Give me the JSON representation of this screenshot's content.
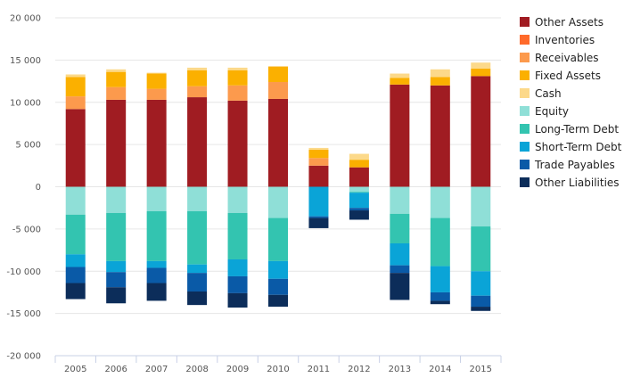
{
  "chart_data": {
    "type": "bar",
    "stacked": true,
    "categories": [
      "2005",
      "2006",
      "2007",
      "2008",
      "2009",
      "2010",
      "2011",
      "2012",
      "2013",
      "2014",
      "2015"
    ],
    "ylim": [
      -20000,
      20000
    ],
    "yticks": [
      20000,
      15000,
      10000,
      5000,
      0,
      -5000,
      -10000,
      -15000,
      -20000
    ],
    "ytick_labels": [
      "20 000",
      "15 000",
      "10 000",
      "5 000",
      "0",
      "-5 000",
      "-10 000",
      "-15 000",
      "-20 000"
    ],
    "grid": true,
    "legend_position": "right",
    "series": [
      {
        "name": "Other Assets",
        "color": "#a01c22",
        "values": [
          9200,
          10300,
          10300,
          10600,
          10200,
          10400,
          2500,
          2300,
          12100,
          12000,
          13100
        ]
      },
      {
        "name": "Inventories",
        "color": "#ff6a2b",
        "values": [
          0,
          0,
          0,
          0,
          0,
          0,
          0,
          0,
          0,
          0,
          0
        ]
      },
      {
        "name": "Receivables",
        "color": "#fc9a4d",
        "values": [
          1500,
          1500,
          1300,
          1300,
          1800,
          2000,
          900,
          0,
          0,
          0,
          0
        ]
      },
      {
        "name": "Fixed Assets",
        "color": "#fbb000",
        "values": [
          2300,
          1800,
          1800,
          1900,
          1800,
          1800,
          1000,
          900,
          800,
          1000,
          900
        ]
      },
      {
        "name": "Cash",
        "color": "#fcd98a",
        "values": [
          300,
          300,
          100,
          300,
          300,
          100,
          200,
          700,
          500,
          900,
          700
        ]
      },
      {
        "name": "Equity",
        "color": "#8fdfd7",
        "values": [
          -3300,
          -3100,
          -2900,
          -2900,
          -3100,
          -3700,
          0,
          -600,
          -3200,
          -3700,
          -4700
        ]
      },
      {
        "name": "Long-Term Debt",
        "color": "#33c4b0",
        "values": [
          -4700,
          -5700,
          -5900,
          -6300,
          -5500,
          -5100,
          0,
          -100,
          -3500,
          -5700,
          -5300
        ]
      },
      {
        "name": "Short-Term Debt",
        "color": "#0aa4d7",
        "values": [
          -1500,
          -1300,
          -800,
          -1000,
          -2000,
          -2100,
          -3500,
          -1800,
          -2600,
          -3100,
          -2900
        ]
      },
      {
        "name": "Trade Payables",
        "color": "#0a5aa7",
        "values": [
          -1900,
          -1800,
          -1800,
          -2200,
          -2000,
          -1900,
          -200,
          -300,
          -900,
          -1000,
          -1300
        ]
      },
      {
        "name": "Other Liabilities",
        "color": "#0c2d5a",
        "values": [
          -1900,
          -1900,
          -2100,
          -1600,
          -1700,
          -1400,
          -1200,
          -1100,
          -3200,
          -400,
          -500
        ]
      }
    ]
  }
}
